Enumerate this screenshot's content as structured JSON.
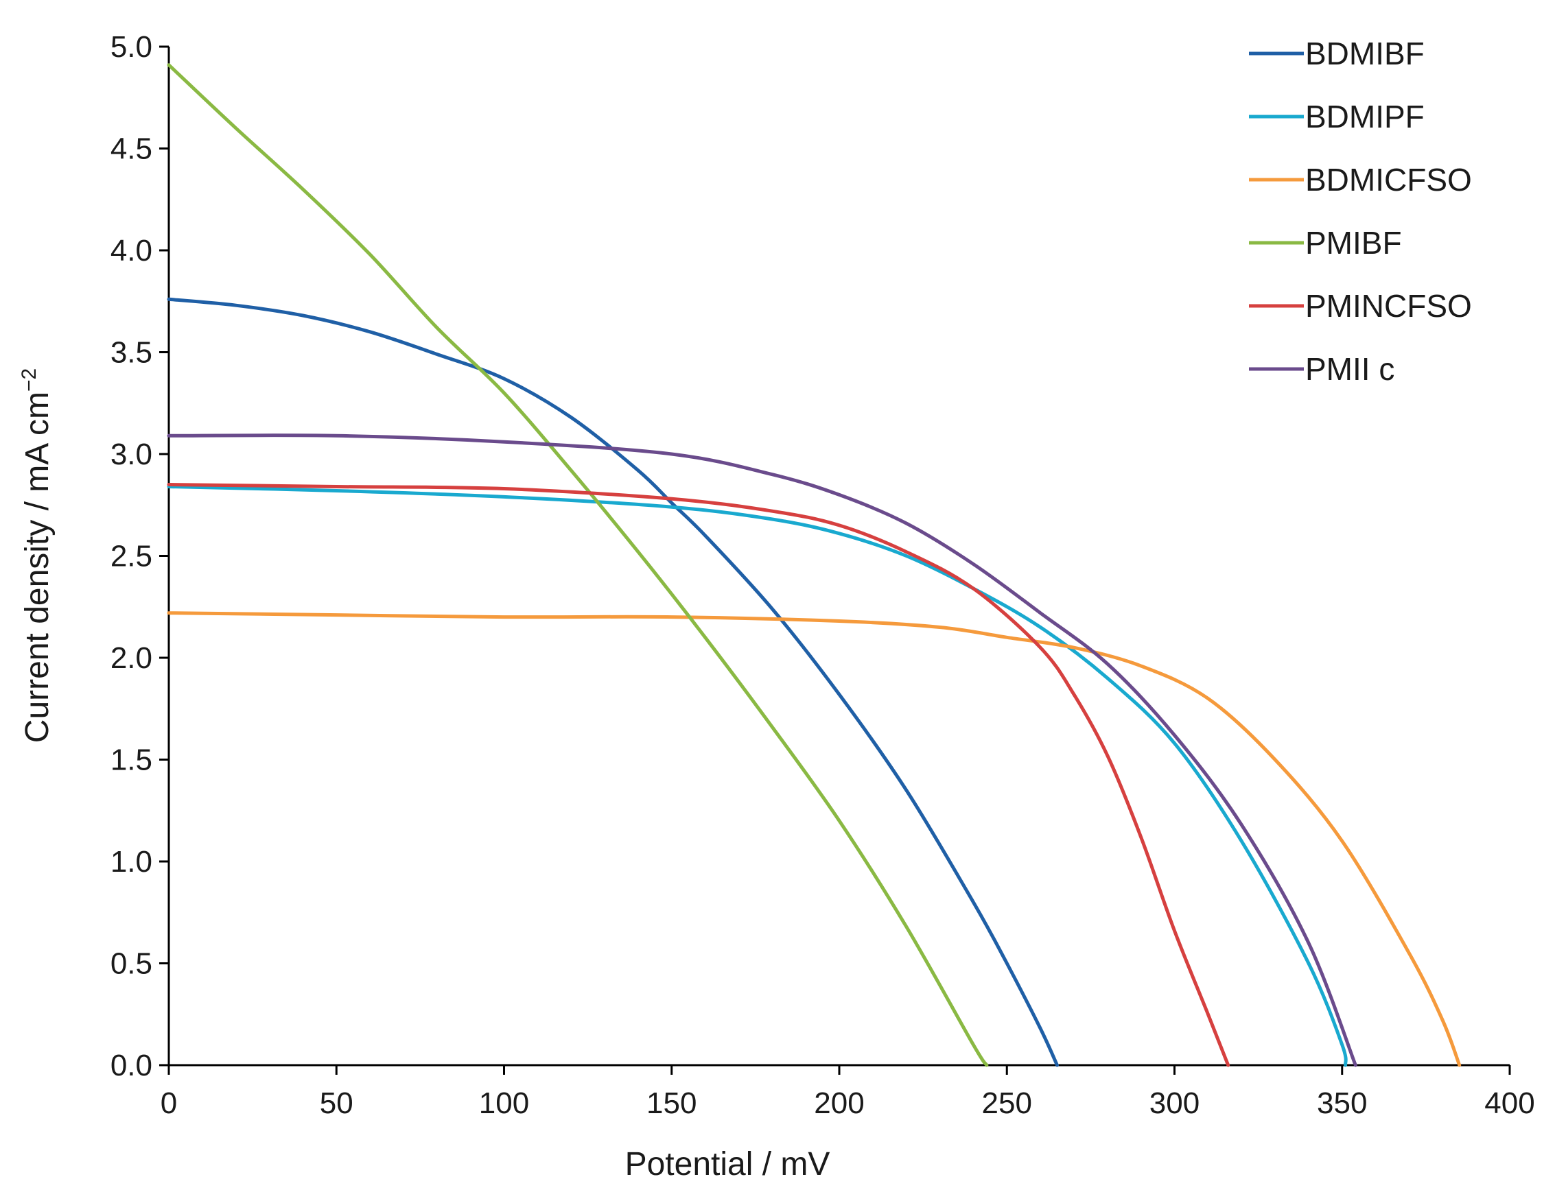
{
  "chart_data": {
    "type": "line",
    "title": "",
    "xlabel": "Potential / mV",
    "ylabel": "Current density / mA cm",
    "ylabel_superscript": "−2",
    "xlim": [
      0,
      400
    ],
    "ylim": [
      0,
      5
    ],
    "x_ticks": [
      0,
      50,
      100,
      150,
      200,
      250,
      300,
      350,
      400
    ],
    "y_ticks": [
      0.0,
      0.5,
      1.0,
      1.5,
      2.0,
      2.5,
      3.0,
      3.5,
      4.0,
      4.5,
      5.0
    ],
    "x_tick_labels": [
      "0",
      "50",
      "100",
      "150",
      "200",
      "250",
      "300",
      "350",
      "400"
    ],
    "y_tick_labels": [
      "0.0",
      "0.5",
      "1.0",
      "1.5",
      "2.0",
      "2.5",
      "3.0",
      "3.5",
      "4.0",
      "4.5",
      "5.0"
    ],
    "grid": false,
    "legend_position": "top-right",
    "series": [
      {
        "name": "BDMIBF",
        "color": "#1f5fa6",
        "x": [
          0,
          20,
          40,
          60,
          80,
          100,
          120,
          140,
          150,
          160,
          180,
          200,
          220,
          240,
          250,
          260,
          265
        ],
        "y": [
          3.76,
          3.73,
          3.68,
          3.6,
          3.49,
          3.37,
          3.18,
          2.92,
          2.76,
          2.6,
          2.24,
          1.82,
          1.35,
          0.8,
          0.5,
          0.18,
          0.0
        ]
      },
      {
        "name": "BDMIPF",
        "color": "#19a9cf",
        "x": [
          0,
          50,
          100,
          150,
          180,
          200,
          220,
          240,
          260,
          280,
          300,
          320,
          340,
          350,
          351
        ],
        "y": [
          2.84,
          2.82,
          2.79,
          2.74,
          2.68,
          2.61,
          2.5,
          2.34,
          2.15,
          1.9,
          1.58,
          1.1,
          0.5,
          0.1,
          0.0
        ]
      },
      {
        "name": "BDMICFSO",
        "color": "#f59a3c",
        "x": [
          0,
          50,
          100,
          150,
          200,
          230,
          250,
          270,
          290,
          310,
          330,
          350,
          370,
          380,
          385
        ],
        "y": [
          2.22,
          2.21,
          2.2,
          2.2,
          2.18,
          2.15,
          2.1,
          2.05,
          1.96,
          1.8,
          1.5,
          1.1,
          0.55,
          0.22,
          0.0
        ]
      },
      {
        "name": "PMIBF",
        "color": "#8ab943",
        "x": [
          0,
          20,
          40,
          60,
          80,
          100,
          120,
          140,
          160,
          180,
          200,
          220,
          240,
          244
        ],
        "y": [
          4.91,
          4.6,
          4.3,
          3.98,
          3.62,
          3.3,
          2.92,
          2.52,
          2.1,
          1.66,
          1.2,
          0.68,
          0.1,
          0.0
        ]
      },
      {
        "name": "PMINCFSO",
        "color": "#d6403f",
        "x": [
          0,
          50,
          100,
          150,
          180,
          200,
          220,
          240,
          260,
          270,
          280,
          290,
          300,
          310,
          316
        ],
        "y": [
          2.85,
          2.84,
          2.83,
          2.78,
          2.72,
          2.65,
          2.52,
          2.34,
          2.05,
          1.82,
          1.52,
          1.12,
          0.66,
          0.25,
          0.0
        ]
      },
      {
        "name": "PMII c",
        "color": "#6a4b8c",
        "x": [
          0,
          50,
          100,
          150,
          180,
          200,
          220,
          240,
          260,
          280,
          300,
          320,
          340,
          354
        ],
        "y": [
          3.09,
          3.09,
          3.06,
          3.0,
          2.9,
          2.8,
          2.66,
          2.46,
          2.22,
          1.97,
          1.62,
          1.18,
          0.6,
          0.0
        ]
      }
    ]
  }
}
